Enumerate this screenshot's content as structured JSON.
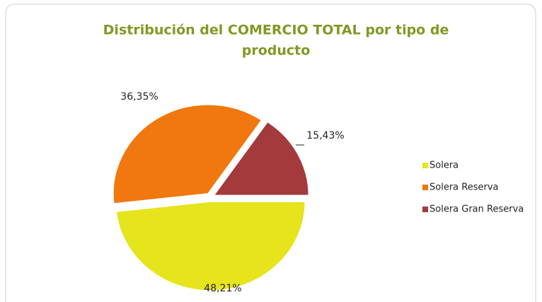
{
  "chart_data": {
    "type": "pie",
    "title": [
      "Distribución del COMERCIO TOTAL por tipo de",
      "producto"
    ],
    "categories": [
      "Solera",
      "Solera Reserva",
      "Solera Gran Reserva"
    ],
    "values": [
      48.21,
      36.35,
      15.43
    ],
    "value_labels": [
      "48,21%",
      "36,35%",
      "15,43%"
    ],
    "colors": [
      "#e6e41c",
      "#f0780f",
      "#a33a3c"
    ],
    "legend": "right"
  }
}
